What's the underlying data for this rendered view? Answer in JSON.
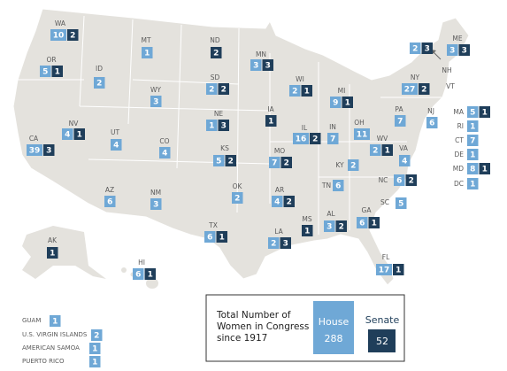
{
  "states": [
    {
      "label": "WA",
      "house": 10,
      "senate": 2
    },
    {
      "label": "OR",
      "house": 5,
      "senate": 1
    },
    {
      "label": "CA",
      "house": 39,
      "senate": 3
    },
    {
      "label": "NV",
      "house": 4,
      "senate": 1
    },
    {
      "label": "ID",
      "house": 2
    },
    {
      "label": "MT",
      "house": 1
    },
    {
      "label": "WY",
      "house": 3
    },
    {
      "label": "UT",
      "house": 4
    },
    {
      "label": "CO",
      "house": 4
    },
    {
      "label": "AZ",
      "house": 6
    },
    {
      "label": "NM",
      "house": 3
    },
    {
      "label": "ND",
      "senate": 2
    },
    {
      "label": "SD",
      "house": 2,
      "senate": 2
    },
    {
      "label": "NE",
      "house": 1,
      "senate": 3
    },
    {
      "label": "KS",
      "house": 5,
      "senate": 2
    },
    {
      "label": "OK",
      "house": 2
    },
    {
      "label": "TX",
      "house": 6,
      "senate": 1
    },
    {
      "label": "MN",
      "house": 3,
      "senate": 3
    },
    {
      "label": "IA",
      "senate": 1
    },
    {
      "label": "MO",
      "house": 7,
      "senate": 2
    },
    {
      "label": "AR",
      "house": 4,
      "senate": 2
    },
    {
      "label": "LA",
      "house": 2,
      "senate": 3
    },
    {
      "label": "WI",
      "house": 2,
      "senate": 1
    },
    {
      "label": "IL",
      "house": 16,
      "senate": 2
    },
    {
      "label": "MS",
      "senate": 1
    },
    {
      "label": "MI",
      "house": 9,
      "senate": 1
    },
    {
      "label": "IN",
      "house": 7
    },
    {
      "label": "KY",
      "house": 2
    },
    {
      "label": "TN",
      "house": 6
    },
    {
      "label": "AL",
      "house": 3,
      "senate": 2
    },
    {
      "label": "GA",
      "house": 6,
      "senate": 1
    },
    {
      "label": "FL",
      "house": 17,
      "senate": 1
    },
    {
      "label": "OH",
      "house": 11
    },
    {
      "label": "WV",
      "house": 2,
      "senate": 1
    },
    {
      "label": "VA",
      "house": 4
    },
    {
      "label": "NC",
      "house": 6,
      "senate": 2
    },
    {
      "label": "SC",
      "house": 5
    },
    {
      "label": "PA",
      "house": 7
    },
    {
      "label": "NY",
      "house": 27,
      "senate": 2
    },
    {
      "label": "NJ",
      "house": 6
    },
    {
      "label": "NH",
      "house": 2,
      "senate": 3
    },
    {
      "label": "VT"
    },
    {
      "label": "ME",
      "house": 3,
      "senate": 3
    },
    {
      "label": "MA",
      "house": 5,
      "senate": 1
    },
    {
      "label": "RI",
      "house": 1
    },
    {
      "label": "CT",
      "house": 7
    },
    {
      "label": "DE",
      "house": 1
    },
    {
      "label": "MD",
      "house": 8,
      "senate": 1
    },
    {
      "label": "DC",
      "house": 1
    },
    {
      "label": "AK",
      "senate": 1
    },
    {
      "label": "HI",
      "house": 6,
      "senate": 1
    }
  ],
  "territories": [
    {
      "label": "GUAM",
      "house": 1
    },
    {
      "label": "U.S. VIRGIN ISLANDS",
      "house": 2
    },
    {
      "label": "AMERICAN SAMOA",
      "house": 1
    },
    {
      "label": "PUERTO RICO",
      "house": 1
    }
  ],
  "legend": {
    "title": [
      "Total Number of",
      "Women in Congress",
      "since 1917"
    ],
    "house_label": "House",
    "house_total": 288,
    "senate_label": "Senate",
    "senate_total": 52
  }
}
